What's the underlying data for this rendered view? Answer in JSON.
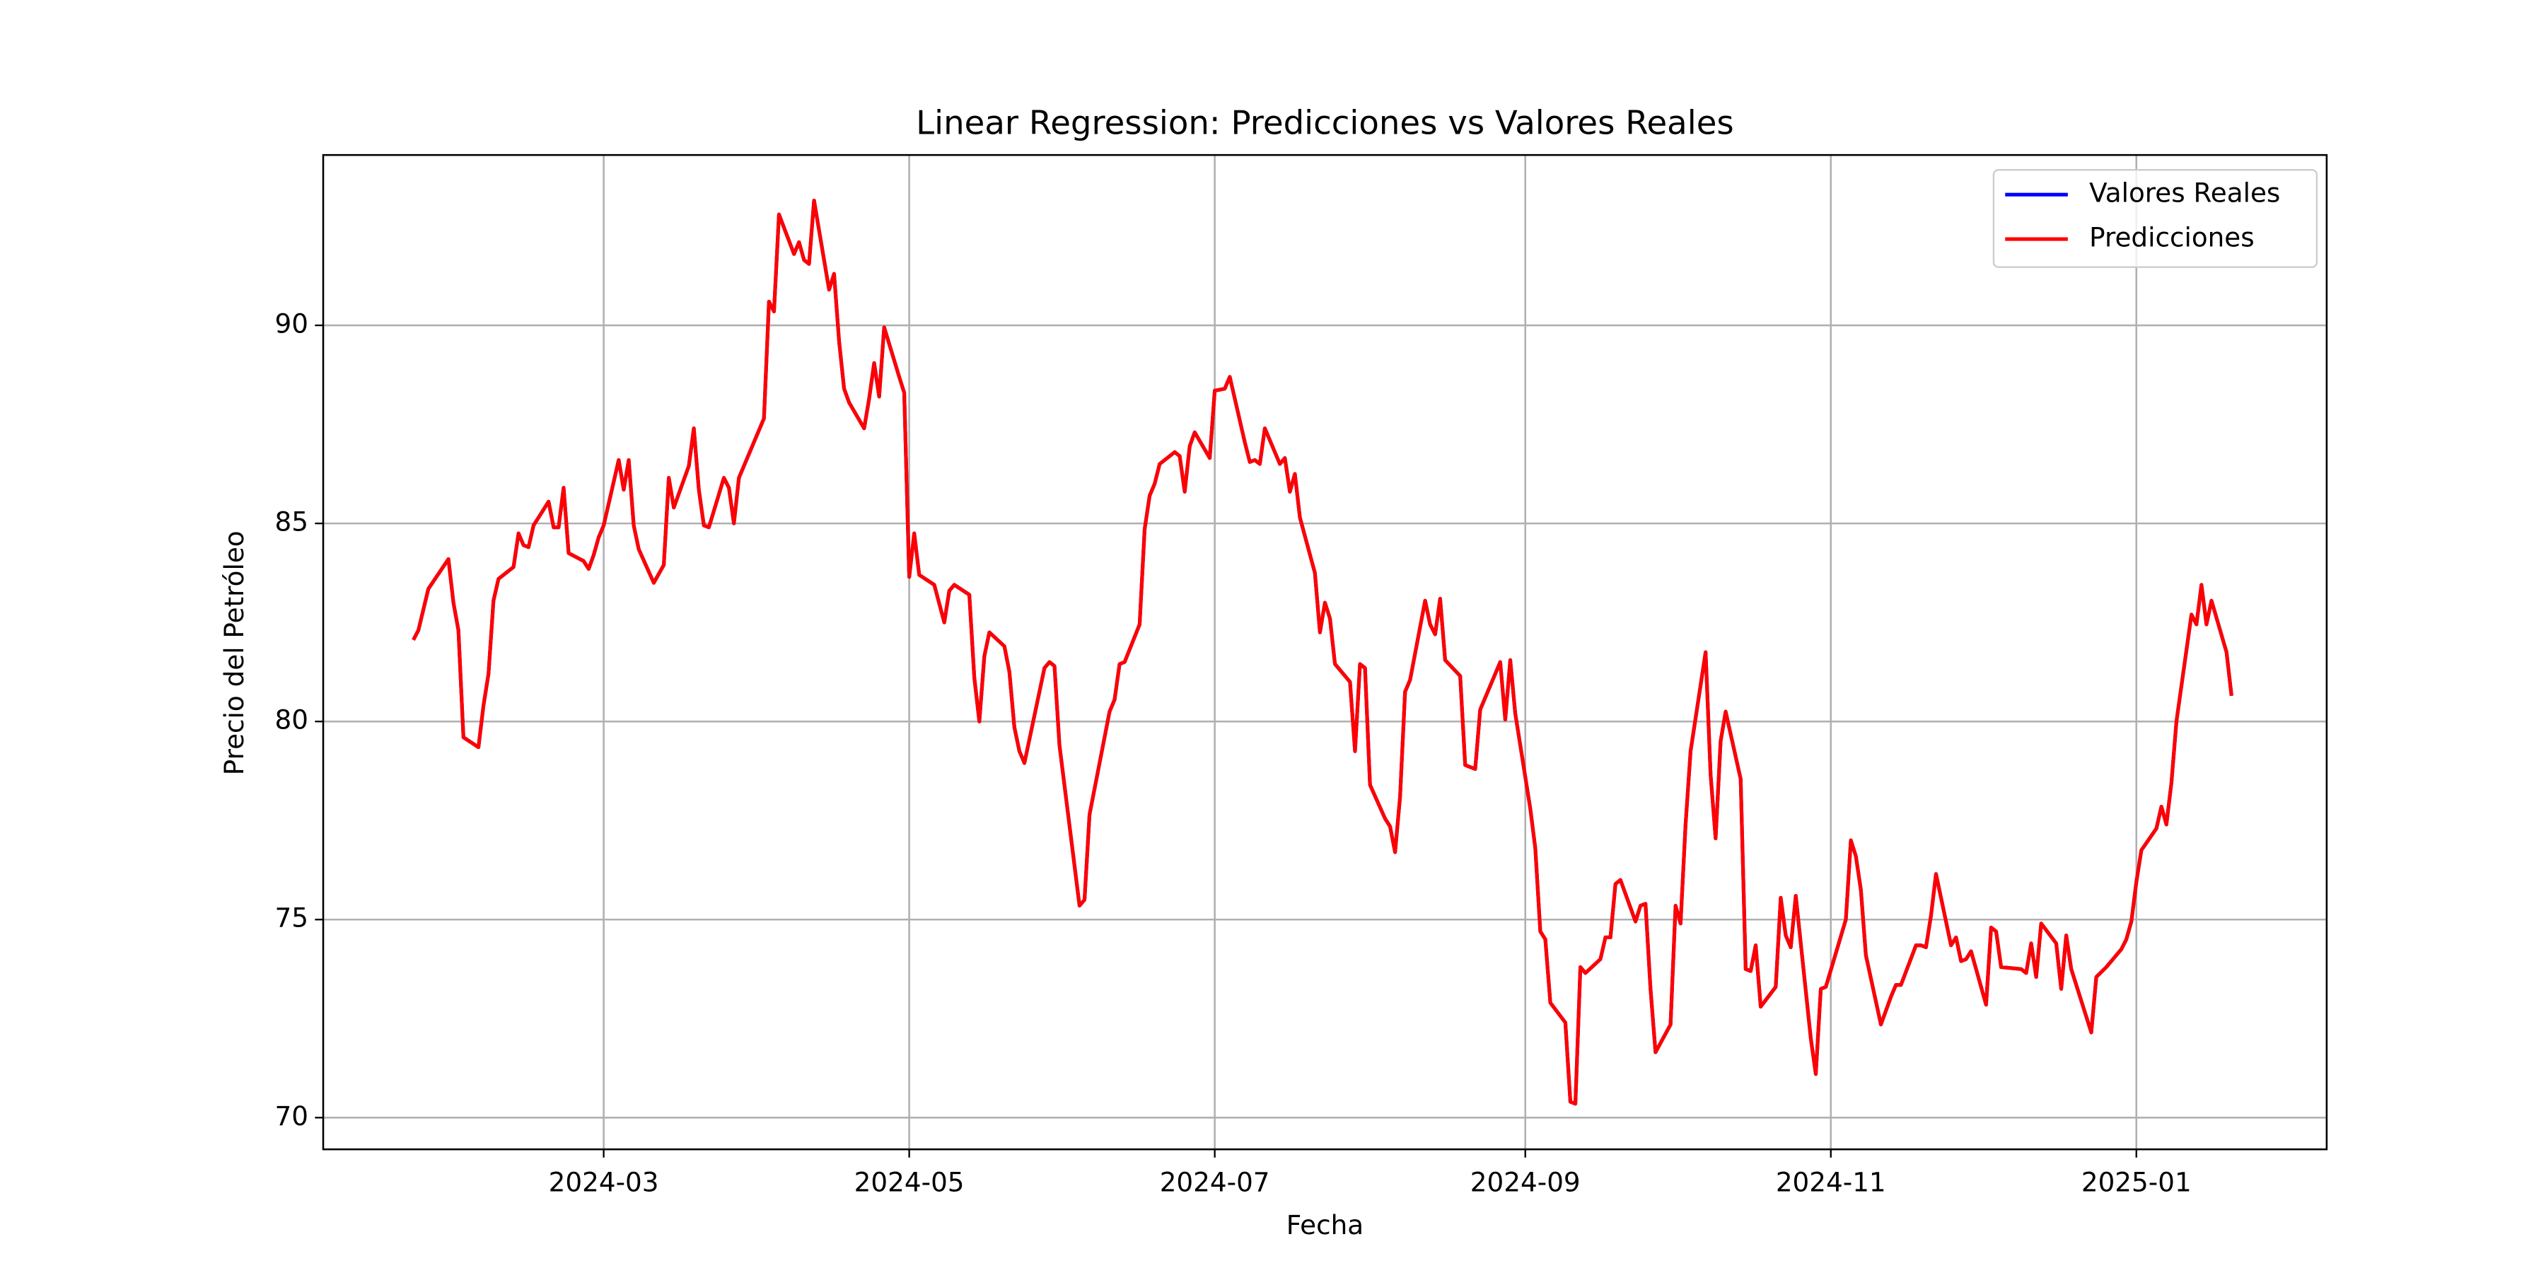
{
  "chart_data": {
    "type": "line",
    "title": "Linear Regression: Predicciones vs Valores Reales",
    "xlabel": "Fecha",
    "ylabel": "Precio del Petróleo",
    "x": [
      "2024-01-23",
      "2024-01-24",
      "2024-01-26",
      "2024-01-30",
      "2024-01-31",
      "2024-02-01",
      "2024-02-02",
      "2024-02-05",
      "2024-02-06",
      "2024-02-07",
      "2024-02-08",
      "2024-02-09",
      "2024-02-12",
      "2024-02-13",
      "2024-02-14",
      "2024-02-15",
      "2024-02-16",
      "2024-02-19",
      "2024-02-20",
      "2024-02-21",
      "2024-02-22",
      "2024-02-23",
      "2024-02-26",
      "2024-02-27",
      "2024-02-28",
      "2024-02-29",
      "2024-03-01",
      "2024-03-04",
      "2024-03-05",
      "2024-03-06",
      "2024-03-07",
      "2024-03-08",
      "2024-03-11",
      "2024-03-13",
      "2024-03-14",
      "2024-03-15",
      "2024-03-18",
      "2024-03-19",
      "2024-03-20",
      "2024-03-21",
      "2024-03-22",
      "2024-03-25",
      "2024-03-26",
      "2024-03-27",
      "2024-03-28",
      "2024-04-02",
      "2024-04-03",
      "2024-04-04",
      "2024-04-05",
      "2024-04-08",
      "2024-04-09",
      "2024-04-10",
      "2024-04-11",
      "2024-04-12",
      "2024-04-15",
      "2024-04-16",
      "2024-04-17",
      "2024-04-18",
      "2024-04-19",
      "2024-04-22",
      "2024-04-23",
      "2024-04-24",
      "2024-04-25",
      "2024-04-26",
      "2024-04-29",
      "2024-04-30",
      "2024-05-01",
      "2024-05-02",
      "2024-05-03",
      "2024-05-06",
      "2024-05-08",
      "2024-05-09",
      "2024-05-10",
      "2024-05-13",
      "2024-05-14",
      "2024-05-15",
      "2024-05-16",
      "2024-05-17",
      "2024-05-20",
      "2024-05-21",
      "2024-05-22",
      "2024-05-23",
      "2024-05-24",
      "2024-05-28",
      "2024-05-29",
      "2024-05-30",
      "2024-05-31",
      "2024-06-04",
      "2024-06-05",
      "2024-06-06",
      "2024-06-10",
      "2024-06-11",
      "2024-06-12",
      "2024-06-13",
      "2024-06-16",
      "2024-06-17",
      "2024-06-18",
      "2024-06-19",
      "2024-06-20",
      "2024-06-23",
      "2024-06-24",
      "2024-06-25",
      "2024-06-26",
      "2024-06-27",
      "2024-06-30",
      "2024-07-01",
      "2024-07-03",
      "2024-07-04",
      "2024-07-07",
      "2024-07-08",
      "2024-07-09",
      "2024-07-10",
      "2024-07-11",
      "2024-07-14",
      "2024-07-15",
      "2024-07-16",
      "2024-07-17",
      "2024-07-18",
      "2024-07-21",
      "2024-07-22",
      "2024-07-23",
      "2024-07-24",
      "2024-07-25",
      "2024-07-28",
      "2024-07-29",
      "2024-07-30",
      "2024-07-31",
      "2024-08-01",
      "2024-08-04",
      "2024-08-05",
      "2024-08-06",
      "2024-08-07",
      "2024-08-08",
      "2024-08-09",
      "2024-08-12",
      "2024-08-13",
      "2024-08-14",
      "2024-08-15",
      "2024-08-16",
      "2024-08-19",
      "2024-08-20",
      "2024-08-21",
      "2024-08-22",
      "2024-08-23",
      "2024-08-27",
      "2024-08-28",
      "2024-08-29",
      "2024-08-30",
      "2024-09-02",
      "2024-09-03",
      "2024-09-04",
      "2024-09-05",
      "2024-09-06",
      "2024-09-09",
      "2024-09-10",
      "2024-09-11",
      "2024-09-12",
      "2024-09-13",
      "2024-09-16",
      "2024-09-17",
      "2024-09-18",
      "2024-09-19",
      "2024-09-20",
      "2024-09-23",
      "2024-09-24",
      "2024-09-25",
      "2024-09-26",
      "2024-09-27",
      "2024-09-30",
      "2024-10-01",
      "2024-10-02",
      "2024-10-03",
      "2024-10-04",
      "2024-10-07",
      "2024-10-08",
      "2024-10-09",
      "2024-10-10",
      "2024-10-11",
      "2024-10-14",
      "2024-10-15",
      "2024-10-16",
      "2024-10-17",
      "2024-10-18",
      "2024-10-21",
      "2024-10-22",
      "2024-10-23",
      "2024-10-24",
      "2024-10-25",
      "2024-10-28",
      "2024-10-29",
      "2024-10-30",
      "2024-10-31",
      "2024-11-04",
      "2024-11-05",
      "2024-11-06",
      "2024-11-07",
      "2024-11-08",
      "2024-11-11",
      "2024-11-12",
      "2024-11-13",
      "2024-11-14",
      "2024-11-15",
      "2024-11-18",
      "2024-11-19",
      "2024-11-20",
      "2024-11-21",
      "2024-11-22",
      "2024-11-25",
      "2024-11-26",
      "2024-11-27",
      "2024-11-28",
      "2024-11-29",
      "2024-12-02",
      "2024-12-03",
      "2024-12-04",
      "2024-12-05",
      "2024-12-09",
      "2024-12-10",
      "2024-12-11",
      "2024-12-12",
      "2024-12-13",
      "2024-12-16",
      "2024-12-17",
      "2024-12-18",
      "2024-12-19",
      "2024-12-23",
      "2024-12-24",
      "2024-12-26",
      "2024-12-29",
      "2024-12-30",
      "2024-12-31",
      "2025-01-01",
      "2025-01-02",
      "2025-01-05",
      "2025-01-06",
      "2025-01-07",
      "2025-01-08",
      "2025-01-09",
      "2025-01-12",
      "2025-01-13",
      "2025-01-14",
      "2025-01-15",
      "2025-01-16",
      "2025-01-19",
      "2025-01-20"
    ],
    "series": [
      {
        "name": "Valores Reales",
        "color": "#0000ff",
        "values": [
          82.06,
          82.3,
          83.35,
          84.1,
          83.0,
          82.3,
          79.6,
          79.35,
          80.4,
          81.2,
          83.05,
          83.6,
          83.9,
          84.75,
          84.45,
          84.4,
          84.95,
          85.55,
          84.9,
          84.9,
          85.9,
          84.25,
          84.05,
          83.85,
          84.2,
          84.65,
          84.95,
          86.6,
          85.85,
          86.6,
          84.95,
          84.35,
          83.5,
          83.95,
          86.15,
          85.4,
          86.45,
          87.4,
          85.85,
          84.95,
          84.9,
          86.15,
          85.9,
          85.0,
          86.15,
          87.65,
          90.6,
          90.35,
          92.8,
          91.8,
          92.1,
          91.65,
          91.55,
          93.15,
          90.9,
          91.3,
          89.6,
          88.4,
          88.05,
          87.4,
          88.15,
          89.05,
          88.2,
          89.95,
          88.7,
          88.3,
          83.65,
          84.75,
          83.7,
          83.45,
          82.5,
          83.3,
          83.45,
          83.2,
          81.1,
          80.0,
          81.65,
          82.25,
          81.9,
          81.25,
          79.85,
          79.25,
          78.95,
          81.35,
          81.5,
          81.4,
          79.4,
          75.35,
          75.5,
          77.65,
          80.25,
          80.55,
          81.45,
          81.5,
          82.45,
          84.85,
          85.7,
          86.0,
          86.5,
          86.8,
          86.7,
          85.8,
          86.95,
          87.3,
          86.65,
          88.35,
          88.4,
          88.7,
          87.05,
          86.55,
          86.6,
          86.5,
          87.4,
          86.5,
          86.65,
          85.8,
          86.25,
          85.15,
          83.75,
          82.25,
          83.0,
          82.6,
          81.45,
          81.0,
          79.25,
          81.45,
          81.35,
          78.4,
          77.55,
          77.35,
          76.7,
          78.1,
          80.75,
          81.05,
          83.05,
          82.45,
          82.2,
          83.1,
          81.55,
          81.15,
          78.9,
          78.85,
          78.8,
          80.3,
          81.5,
          80.05,
          81.55,
          80.2,
          77.8,
          76.8,
          74.7,
          74.5,
          72.9,
          72.4,
          70.4,
          70.35,
          73.8,
          73.65,
          74.0,
          74.55,
          74.55,
          75.9,
          76.0,
          74.95,
          75.35,
          75.4,
          73.25,
          71.65,
          72.35,
          75.35,
          74.9,
          77.4,
          79.25,
          81.75,
          78.65,
          77.05,
          79.5,
          80.25,
          78.55,
          73.75,
          73.7,
          74.35,
          72.8,
          73.3,
          75.55,
          74.6,
          74.3,
          75.6,
          72.0,
          71.1,
          73.25,
          73.3,
          75.0,
          77.0,
          76.6,
          75.75,
          74.1,
          72.35,
          72.7,
          73.05,
          73.35,
          73.35,
          74.35,
          74.35,
          74.3,
          75.1,
          76.15,
          74.35,
          74.55,
          73.95,
          74.0,
          74.2,
          72.85,
          74.8,
          74.7,
          73.8,
          73.75,
          73.65,
          74.4,
          73.55,
          74.9,
          74.4,
          73.25,
          74.6,
          73.75,
          72.15,
          73.55,
          73.8,
          74.25,
          74.5,
          74.95,
          75.95,
          76.75,
          77.3,
          77.85,
          77.4,
          78.45,
          80.0,
          82.7,
          82.45,
          83.45,
          82.45,
          83.05,
          81.75,
          80.65
        ]
      },
      {
        "name": "Predicciones",
        "color": "#ff0000",
        "values": [
          82.06,
          82.3,
          83.35,
          84.1,
          83.0,
          82.3,
          79.6,
          79.35,
          80.4,
          81.2,
          83.05,
          83.6,
          83.9,
          84.75,
          84.45,
          84.4,
          84.95,
          85.55,
          84.9,
          84.9,
          85.9,
          84.25,
          84.05,
          83.85,
          84.2,
          84.65,
          84.95,
          86.6,
          85.85,
          86.6,
          84.95,
          84.35,
          83.5,
          83.95,
          86.15,
          85.4,
          86.45,
          87.4,
          85.85,
          84.95,
          84.9,
          86.15,
          85.9,
          85.0,
          86.15,
          87.65,
          90.6,
          90.35,
          92.8,
          91.8,
          92.1,
          91.65,
          91.55,
          93.15,
          90.9,
          91.3,
          89.6,
          88.4,
          88.05,
          87.4,
          88.15,
          89.05,
          88.2,
          89.95,
          88.7,
          88.3,
          83.65,
          84.75,
          83.7,
          83.45,
          82.5,
          83.3,
          83.45,
          83.2,
          81.1,
          80.0,
          81.65,
          82.25,
          81.9,
          81.25,
          79.85,
          79.25,
          78.95,
          81.35,
          81.5,
          81.4,
          79.4,
          75.35,
          75.5,
          77.65,
          80.25,
          80.55,
          81.45,
          81.5,
          82.45,
          84.85,
          85.7,
          86.0,
          86.5,
          86.8,
          86.7,
          85.8,
          86.95,
          87.3,
          86.65,
          88.35,
          88.4,
          88.7,
          87.05,
          86.55,
          86.6,
          86.5,
          87.4,
          86.5,
          86.65,
          85.8,
          86.25,
          85.15,
          83.75,
          82.25,
          83.0,
          82.6,
          81.45,
          81.0,
          79.25,
          81.45,
          81.35,
          78.4,
          77.55,
          77.35,
          76.7,
          78.1,
          80.75,
          81.05,
          83.05,
          82.45,
          82.2,
          83.1,
          81.55,
          81.15,
          78.9,
          78.85,
          78.8,
          80.3,
          81.5,
          80.05,
          81.55,
          80.2,
          77.8,
          76.8,
          74.7,
          74.5,
          72.9,
          72.4,
          70.4,
          70.35,
          73.8,
          73.65,
          74.0,
          74.55,
          74.55,
          75.9,
          76.0,
          74.95,
          75.35,
          75.4,
          73.25,
          71.65,
          72.35,
          75.35,
          74.9,
          77.4,
          79.25,
          81.75,
          78.65,
          77.05,
          79.5,
          80.25,
          78.55,
          73.75,
          73.7,
          74.35,
          72.8,
          73.3,
          75.55,
          74.6,
          74.3,
          75.6,
          72.0,
          71.1,
          73.25,
          73.3,
          75.0,
          77.0,
          76.6,
          75.75,
          74.1,
          72.35,
          72.7,
          73.05,
          73.35,
          73.35,
          74.35,
          74.35,
          74.3,
          75.1,
          76.15,
          74.35,
          74.55,
          73.95,
          74.0,
          74.2,
          72.85,
          74.8,
          74.7,
          73.8,
          73.75,
          73.65,
          74.4,
          73.55,
          74.9,
          74.4,
          73.25,
          74.6,
          73.75,
          72.15,
          73.55,
          73.8,
          74.25,
          74.5,
          74.95,
          75.95,
          76.75,
          77.3,
          77.85,
          77.4,
          78.45,
          80.0,
          82.7,
          82.45,
          83.45,
          82.45,
          83.05,
          81.75,
          80.65
        ]
      }
    ],
    "xlim": [
      "2024-01-05",
      "2025-02-08"
    ],
    "xticks": [
      {
        "value": "2024-03-01",
        "label": "2024-03"
      },
      {
        "value": "2024-05-01",
        "label": "2024-05"
      },
      {
        "value": "2024-07-01",
        "label": "2024-07"
      },
      {
        "value": "2024-09-01",
        "label": "2024-09"
      },
      {
        "value": "2024-11-01",
        "label": "2024-11"
      },
      {
        "value": "2025-01-01",
        "label": "2025-01"
      }
    ],
    "ylim": [
      69.2,
      94.3
    ],
    "yticks": [
      70,
      75,
      80,
      85,
      90
    ],
    "grid": true,
    "legend": "upper right"
  }
}
